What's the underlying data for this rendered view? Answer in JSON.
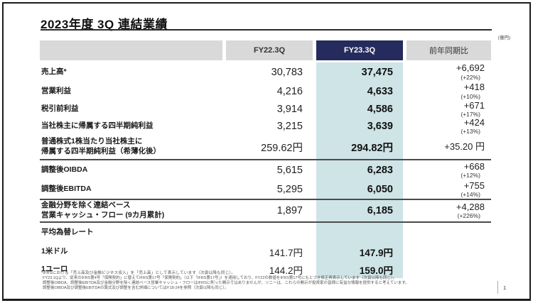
{
  "slide": {
    "title": "2023年度 3Q 連結業績",
    "unit_label": "(億円)",
    "page_number": "1"
  },
  "table": {
    "columns": {
      "fy22": "FY22.3Q",
      "fy23": "FY23.3Q",
      "yoy": "前年同期比"
    },
    "rows": [
      {
        "label": "売上高*",
        "fy22": "30,783",
        "fy23": "37,475",
        "yoy": "+6,692",
        "yoy_pct": "(+22%)"
      },
      {
        "label": "営業利益",
        "fy22": "4,216",
        "fy23": "4,633",
        "yoy": "+418",
        "yoy_pct": "(+10%)"
      },
      {
        "label": "税引前利益",
        "fy22": "3,914",
        "fy23": "4,586",
        "yoy": "+671",
        "yoy_pct": "(+17%)"
      },
      {
        "label": "当社株主に帰属する四半期純利益",
        "fy22": "3,215",
        "fy23": "3,639",
        "yoy": "+424",
        "yoy_pct": "(+13%)"
      },
      {
        "label": "普通株式1株当たり当社株主に\n帰属する四半期純利益（希薄化後）",
        "fy22": "259.62円",
        "fy23": "294.82円",
        "yoy": "+35.20 円",
        "yoy_pct": ""
      },
      {
        "label": "調整後OIBDA",
        "fy22": "5,615",
        "fy23": "6,283",
        "yoy": "+668",
        "yoy_pct": "(+12%)"
      },
      {
        "label": "調整後EBITDA",
        "fy22": "5,295",
        "fy23": "6,050",
        "yoy": "+755",
        "yoy_pct": "(+14%)"
      },
      {
        "label": "金融分野を除く連結ベース\n営業キャッシュ・フロー (9カ月累計)",
        "fy22": "1,897",
        "fy23": "6,185",
        "yoy": "+4,288",
        "yoy_pct": "(+226%)"
      }
    ]
  },
  "fx": {
    "header": "平均為替レート",
    "rows": [
      {
        "label": "1米ドル",
        "fy22": "141.7円",
        "fy23": "147.9円"
      },
      {
        "label": "1ユーロ",
        "fy22": "144.2円",
        "fy23": "159.0円"
      }
    ]
  },
  "footnotes": {
    "line1": "*IFRSにおける「売上高及び金融ビジネス収入」を「売上高」として表示しています（次頁以降も同じ）。",
    "line2": "FY23.1Qより、従来のIFRS第4号「保険契約」に替えてIFRS第17号「保険契約」（以下「IFRS第17号」）を適用しており、FY22の数値をIFRS第17号にもとづき修正再表示しています（次頁以降も同じ）。",
    "line3": "調整後OIBDA、調整後EBITDA及び金融分野を除く連結ベース営業キャッシュ・フローはIFRSに則った開示ではありませんが、ソニーは、これらの開示が投資家の皆様に有益な情報を提供すると考えています。",
    "line4": "調整後OIBDA及び調整後EBITDAの算式及び調整を含む詳細についてはP.18-24を参照（次頁以降も同じ）。"
  },
  "colors": {
    "accent_navy": "#252b5c",
    "highlight_blue": "#cee4e7",
    "header_gray": "#d9d9d9"
  }
}
